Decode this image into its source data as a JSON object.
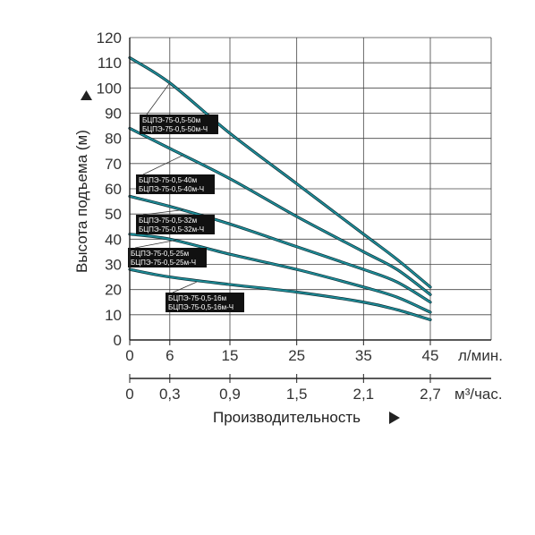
{
  "chart_data": {
    "type": "line",
    "ylabel": "Высота подъема (м)",
    "xlabel": "Производительность",
    "x_unit_lpm": "л/мин.",
    "x_unit_m3h": "м³/час.",
    "x_ticks_lpm": [
      "0",
      "6",
      "15",
      "25",
      "35",
      "45"
    ],
    "x_ticks_m3h": [
      "0",
      "0,3",
      "0,9",
      "1,5",
      "2,1",
      "2,7"
    ],
    "y_ticks": [
      "0",
      "10",
      "20",
      "30",
      "40",
      "50",
      "60",
      "70",
      "80",
      "90",
      "100",
      "110",
      "120"
    ],
    "xlim": [
      0,
      45
    ],
    "ylim": [
      0,
      120
    ],
    "grid": true,
    "series": [
      {
        "labels": [
          "БЦПЭ-75-0,5-50м",
          "БЦПЭ-75-0,5-50м-Ч"
        ],
        "x": [
          0,
          6,
          15,
          25,
          35,
          40,
          45
        ],
        "y": [
          112,
          102,
          82,
          62,
          42,
          32,
          21
        ]
      },
      {
        "labels": [
          "БЦПЭ-75-0,5-40м",
          "БЦПЭ-75-0,5-40м-Ч"
        ],
        "x": [
          0,
          6,
          15,
          25,
          35,
          40,
          45
        ],
        "y": [
          84,
          76,
          64,
          49,
          35,
          28,
          18
        ]
      },
      {
        "labels": [
          "БЦПЭ-75-0,5-32м",
          "БЦПЭ-75-0,5-32м-Ч"
        ],
        "x": [
          0,
          6,
          15,
          25,
          35,
          40,
          45
        ],
        "y": [
          57,
          53,
          46,
          37,
          28,
          23,
          15
        ]
      },
      {
        "labels": [
          "БЦПЭ-75-0,5-25м",
          "БЦПЭ-75-0,5-25м-Ч"
        ],
        "x": [
          0,
          6,
          15,
          25,
          35,
          40,
          45
        ],
        "y": [
          42,
          40,
          34,
          28,
          21,
          17,
          11
        ]
      },
      {
        "labels": [
          "БЦПЭ-75-0,5-16м",
          "БЦПЭ-75-0,5-16м-Ч"
        ],
        "x": [
          0,
          6,
          15,
          25,
          35,
          40,
          45
        ],
        "y": [
          28,
          25,
          22,
          19,
          15,
          12,
          8
        ]
      }
    ]
  },
  "colors": {
    "curve": "#1e8f9a",
    "curve_outline": "#0d2e36",
    "label_bg": "#111111",
    "grid": "#444444",
    "axis": "#222222"
  },
  "icons": [
    "arrow-up-icon",
    "arrow-right-icon"
  ]
}
